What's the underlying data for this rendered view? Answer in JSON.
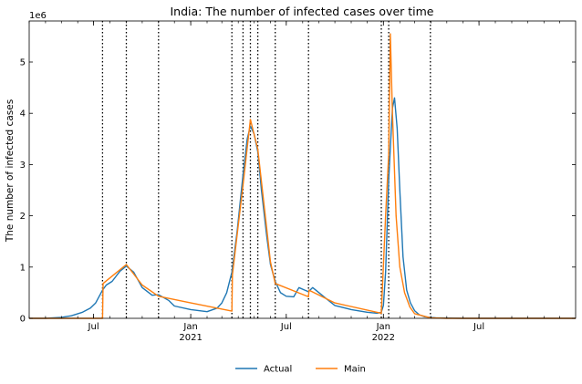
{
  "chart_data": {
    "type": "line",
    "title": "India: The number of infected cases over time",
    "xlabel": "",
    "ylabel": "The number of infected cases",
    "y_offset_label": "1e6",
    "y_multiplier": 1000000,
    "xlim": [
      "2020-03-01",
      "2022-12-31"
    ],
    "ylim": [
      0,
      5.8
    ],
    "y_ticks": [
      0,
      1,
      2,
      3,
      4,
      5
    ],
    "x_ticks": [
      {
        "date": "2020-07-01",
        "label": "Jul",
        "sub": ""
      },
      {
        "date": "2021-01-01",
        "label": "Jan",
        "sub": "2021"
      },
      {
        "date": "2021-07-01",
        "label": "Jul",
        "sub": ""
      },
      {
        "date": "2022-01-01",
        "label": "Jan",
        "sub": "2022"
      },
      {
        "date": "2022-07-01",
        "label": "Jul",
        "sub": ""
      }
    ],
    "grid": false,
    "legend_position": "bottom-center",
    "change_points": [
      "2020-07-18",
      "2020-09-01",
      "2020-11-01",
      "2021-03-20",
      "2021-04-10",
      "2021-04-24",
      "2021-05-08",
      "2021-06-10",
      "2021-08-12",
      "2021-12-28",
      "2022-01-11",
      "2022-03-31"
    ],
    "series": [
      {
        "name": "Actual",
        "color": "#1f77b4",
        "points": [
          [
            "2020-03-01",
            0.0
          ],
          [
            "2020-04-01",
            0.0
          ],
          [
            "2020-05-01",
            0.02
          ],
          [
            "2020-05-20",
            0.05
          ],
          [
            "2020-06-10",
            0.12
          ],
          [
            "2020-06-25",
            0.2
          ],
          [
            "2020-07-05",
            0.3
          ],
          [
            "2020-07-18",
            0.55
          ],
          [
            "2020-07-25",
            0.65
          ],
          [
            "2020-08-05",
            0.72
          ],
          [
            "2020-08-20",
            0.92
          ],
          [
            "2020-09-01",
            1.02
          ],
          [
            "2020-09-15",
            0.9
          ],
          [
            "2020-10-01",
            0.6
          ],
          [
            "2020-10-20",
            0.45
          ],
          [
            "2020-11-01",
            0.46
          ],
          [
            "2020-11-20",
            0.35
          ],
          [
            "2020-12-01",
            0.24
          ],
          [
            "2021-01-01",
            0.17
          ],
          [
            "2021-02-01",
            0.13
          ],
          [
            "2021-02-20",
            0.2
          ],
          [
            "2021-03-01",
            0.3
          ],
          [
            "2021-03-10",
            0.5
          ],
          [
            "2021-03-20",
            0.9
          ],
          [
            "2021-03-30",
            1.7
          ],
          [
            "2021-04-10",
            2.8
          ],
          [
            "2021-04-18",
            3.5
          ],
          [
            "2021-04-24",
            3.75
          ],
          [
            "2021-05-01",
            3.6
          ],
          [
            "2021-05-08",
            3.25
          ],
          [
            "2021-05-15",
            2.5
          ],
          [
            "2021-05-25",
            1.6
          ],
          [
            "2021-06-01",
            1.05
          ],
          [
            "2021-06-10",
            0.72
          ],
          [
            "2021-06-20",
            0.5
          ],
          [
            "2021-07-01",
            0.43
          ],
          [
            "2021-07-15",
            0.42
          ],
          [
            "2021-07-25",
            0.6
          ],
          [
            "2021-08-05",
            0.55
          ],
          [
            "2021-08-12",
            0.52
          ],
          [
            "2021-08-20",
            0.6
          ],
          [
            "2021-09-01",
            0.5
          ],
          [
            "2021-09-15",
            0.38
          ],
          [
            "2021-10-01",
            0.25
          ],
          [
            "2021-11-01",
            0.17
          ],
          [
            "2021-12-01",
            0.12
          ],
          [
            "2021-12-20",
            0.1
          ],
          [
            "2021-12-28",
            0.12
          ],
          [
            "2022-01-01",
            0.25
          ],
          [
            "2022-01-05",
            0.9
          ],
          [
            "2022-01-11",
            2.7
          ],
          [
            "2022-01-18",
            4.1
          ],
          [
            "2022-01-22",
            4.3
          ],
          [
            "2022-01-27",
            3.7
          ],
          [
            "2022-02-01",
            2.5
          ],
          [
            "2022-02-07",
            1.2
          ],
          [
            "2022-02-14",
            0.55
          ],
          [
            "2022-02-21",
            0.3
          ],
          [
            "2022-03-01",
            0.15
          ],
          [
            "2022-03-10",
            0.07
          ],
          [
            "2022-03-20",
            0.03
          ],
          [
            "2022-03-31",
            0.02
          ],
          [
            "2022-04-10",
            0.01
          ],
          [
            "2022-06-01",
            0.0
          ],
          [
            "2022-12-31",
            0.0
          ]
        ]
      },
      {
        "name": "Main",
        "color": "#ff7f0e",
        "points": [
          [
            "2020-03-01",
            0.0
          ],
          [
            "2020-07-18",
            0.0
          ],
          [
            "2020-07-19",
            0.68
          ],
          [
            "2020-09-01",
            1.05
          ],
          [
            "2020-10-01",
            0.65
          ],
          [
            "2020-11-01",
            0.43
          ],
          [
            "2021-01-01",
            0.3
          ],
          [
            "2021-03-20",
            0.14
          ],
          [
            "2021-03-21",
            0.85
          ],
          [
            "2021-04-10",
            2.6
          ],
          [
            "2021-04-24",
            3.88
          ],
          [
            "2021-05-08",
            3.3
          ],
          [
            "2021-06-01",
            1.1
          ],
          [
            "2021-06-10",
            0.68
          ],
          [
            "2021-08-12",
            0.42
          ],
          [
            "2021-08-13",
            0.55
          ],
          [
            "2021-10-01",
            0.3
          ],
          [
            "2021-12-28",
            0.1
          ],
          [
            "2022-01-05",
            2.0
          ],
          [
            "2022-01-11",
            3.2
          ],
          [
            "2022-01-14",
            5.55
          ],
          [
            "2022-01-18",
            4.0
          ],
          [
            "2022-01-25",
            2.0
          ],
          [
            "2022-02-01",
            1.0
          ],
          [
            "2022-02-10",
            0.5
          ],
          [
            "2022-02-20",
            0.22
          ],
          [
            "2022-03-01",
            0.09
          ],
          [
            "2022-03-31",
            0.01
          ],
          [
            "2022-05-01",
            0.0
          ],
          [
            "2022-12-31",
            0.0
          ]
        ]
      }
    ]
  }
}
